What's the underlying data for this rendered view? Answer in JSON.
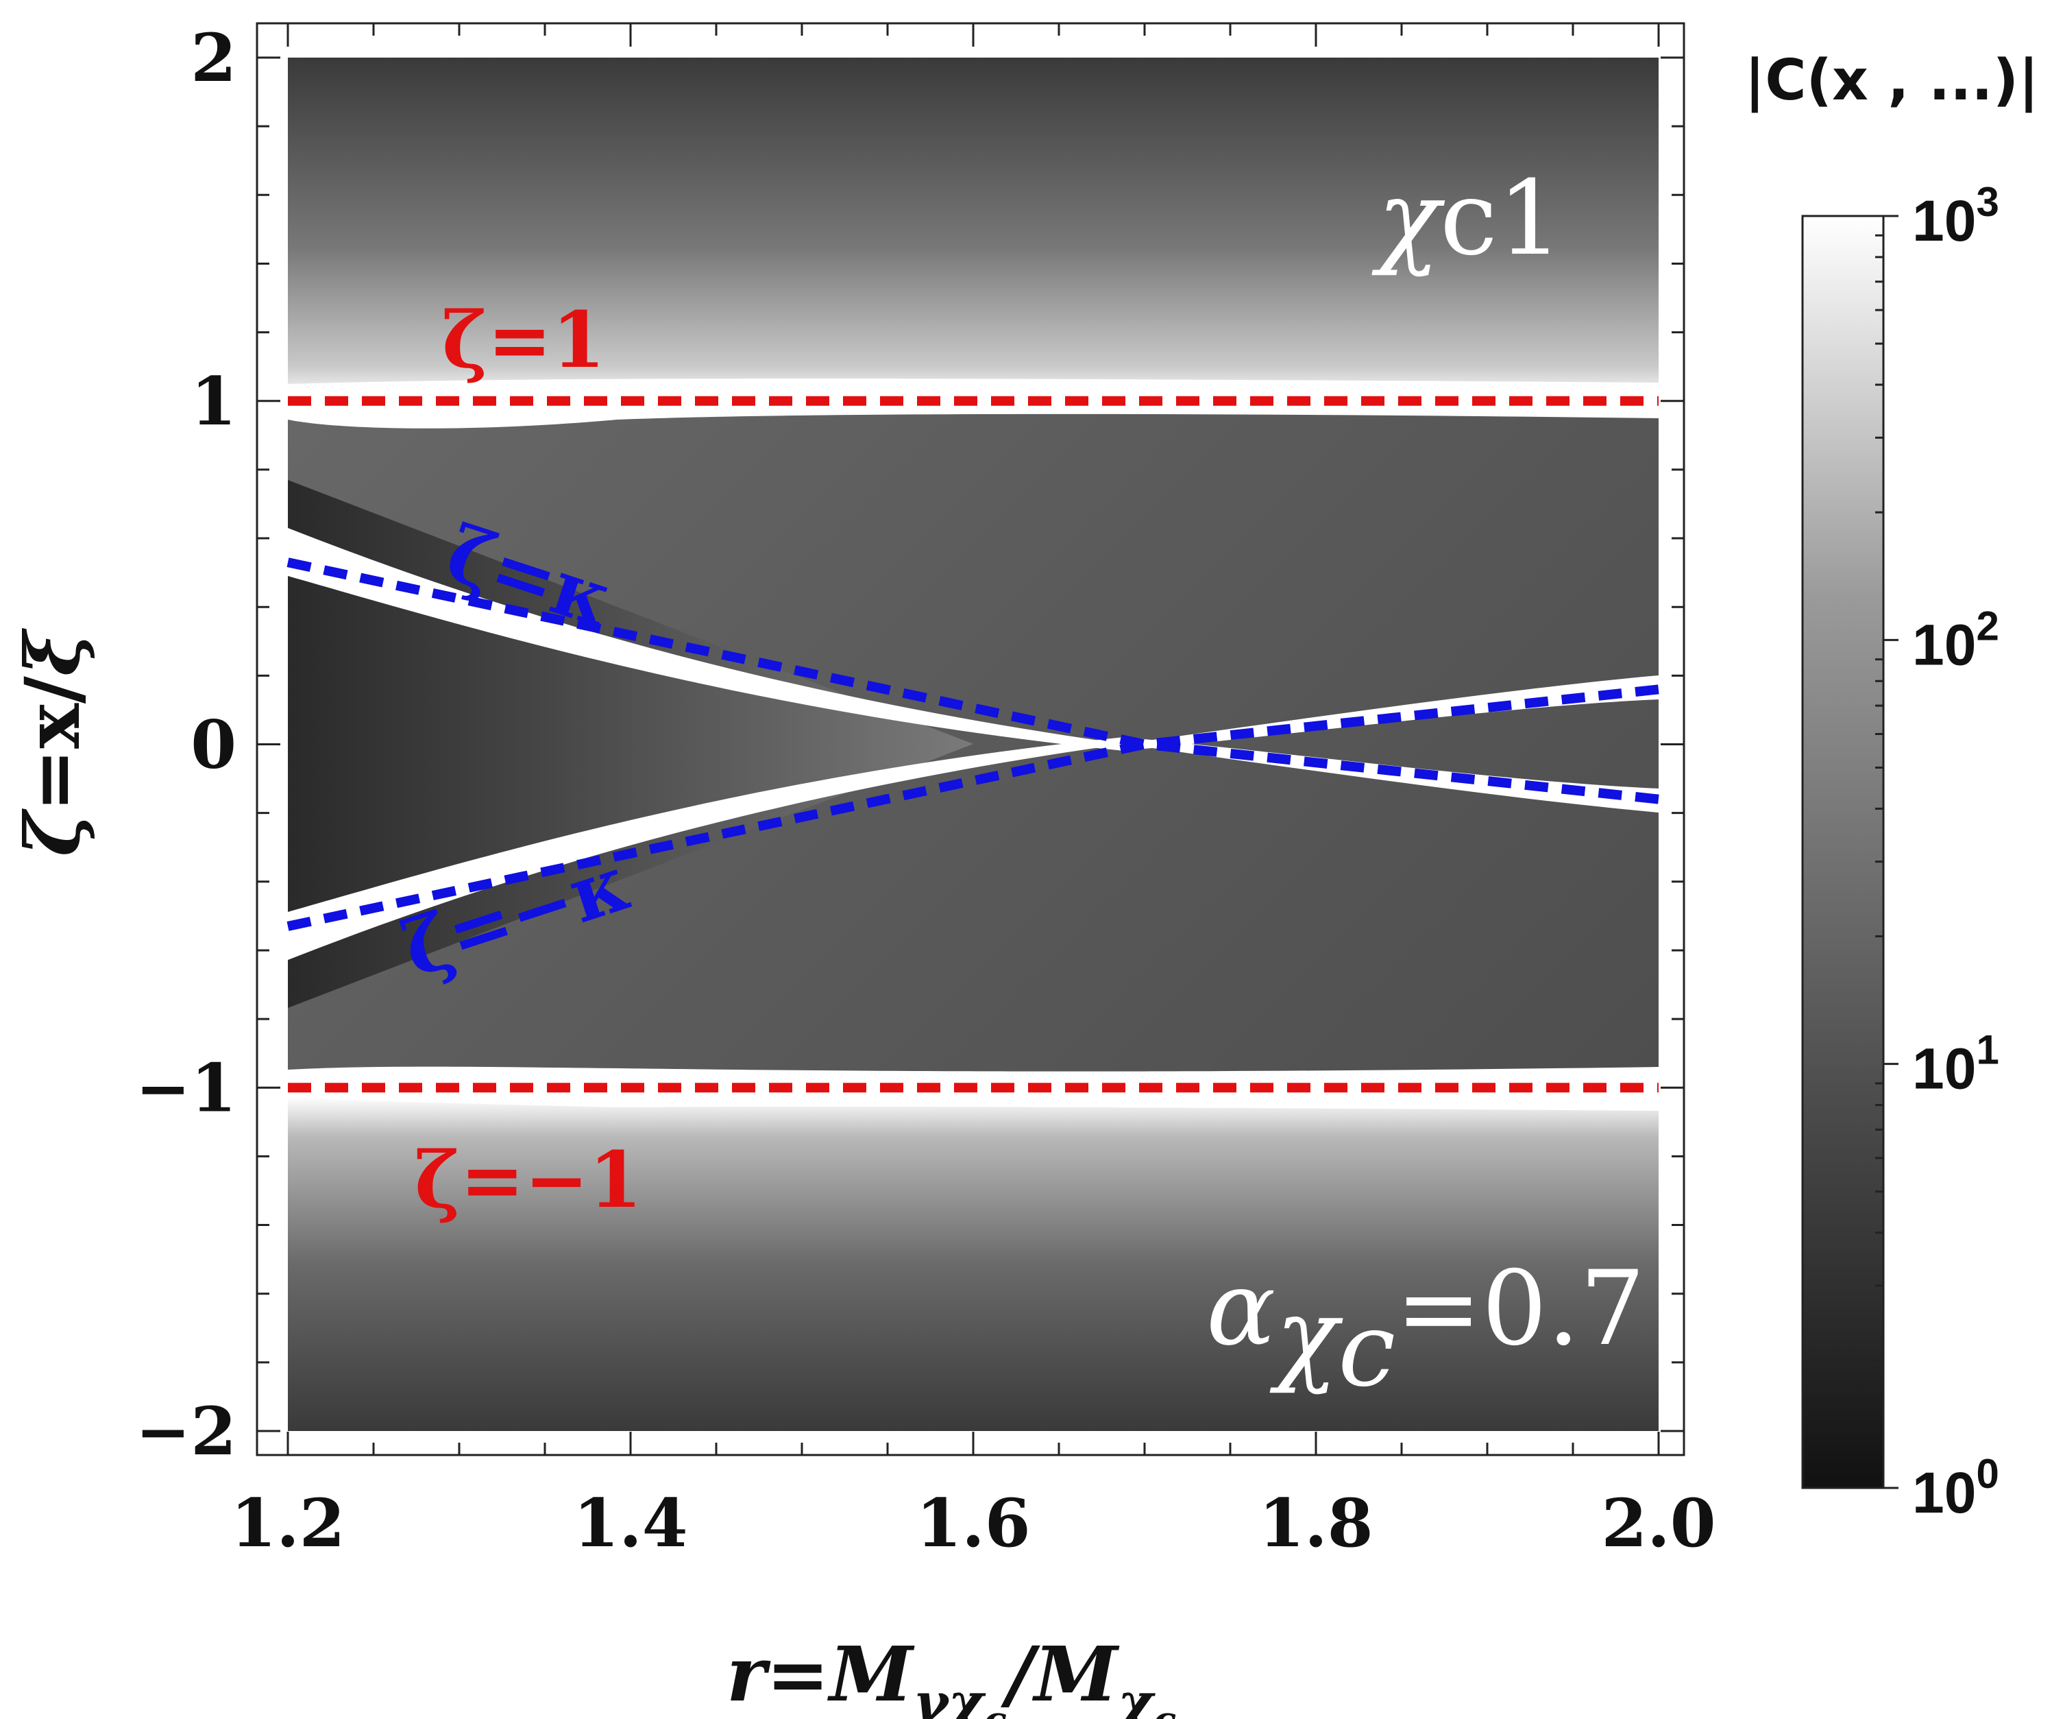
{
  "chart_data": {
    "type": "heatmap",
    "title": "",
    "xlabel": "r=M_{γχc}/M_{χc}",
    "ylabel": "ζ=x/ξ",
    "xlim": [
      1.2,
      2.0
    ],
    "ylim": [
      -2,
      2
    ],
    "x_ticks": [
      1.2,
      1.4,
      1.6,
      1.8,
      2.0
    ],
    "x_tick_labels": [
      "1.2",
      "1.4",
      "1.6",
      "1.8",
      "2.0"
    ],
    "y_ticks": [
      2,
      1,
      0,
      -1,
      -2
    ],
    "y_tick_labels": [
      "2",
      "1",
      "0",
      "−1",
      "−2"
    ],
    "colorbar": {
      "title": "|C(x , ...)|",
      "scale": "log",
      "range": [
        1,
        1000
      ],
      "ticks": [
        {
          "base": "10",
          "exp": "0",
          "value": 1
        },
        {
          "base": "10",
          "exp": "1",
          "value": 10
        },
        {
          "base": "10",
          "exp": "2",
          "value": 100
        },
        {
          "base": "10",
          "exp": "3",
          "value": 1000
        }
      ]
    },
    "series": [
      {
        "name": "ζ=1",
        "color": "#e21010",
        "style": "dashed",
        "x": [
          1.2,
          2.0
        ],
        "y": [
          1,
          1
        ]
      },
      {
        "name": "ζ=-1",
        "color": "#e21010",
        "style": "dashed",
        "x": [
          1.2,
          2.0
        ],
        "y": [
          -1,
          -1
        ]
      },
      {
        "name": "ζ=κ",
        "color": "#1010e0",
        "style": "dashed",
        "x": [
          1.2,
          1.7,
          2.0
        ],
        "y": [
          0.53,
          0.0,
          -0.16
        ]
      },
      {
        "name": "ζ=-κ",
        "color": "#1010e0",
        "style": "dashed",
        "x": [
          1.2,
          1.7,
          2.0
        ],
        "y": [
          -0.53,
          0.0,
          0.16
        ]
      }
    ],
    "annotations": {
      "particle_main": "χ",
      "particle_sub": "c1",
      "zeta_plus1": "ζ=1",
      "zeta_minus1": "ζ=−1",
      "zeta_kappa": "ζ=κ",
      "zeta_minus_kappa": "ζ=−κ",
      "alpha_main": "α",
      "alpha_sub": "χ",
      "alpha_subsub": "c",
      "alpha_value": "=0.7"
    },
    "ylabel_parts": {
      "zeta": "ζ",
      "eq": "=x/",
      "xi": "ξ"
    },
    "xlabel_parts": {
      "r": "r=",
      "M": "M",
      "sub1": "γχ",
      "subsub1": "c",
      "slash": "/",
      "M2": "M",
      "sub2": "χ",
      "subsub2": "c"
    }
  }
}
